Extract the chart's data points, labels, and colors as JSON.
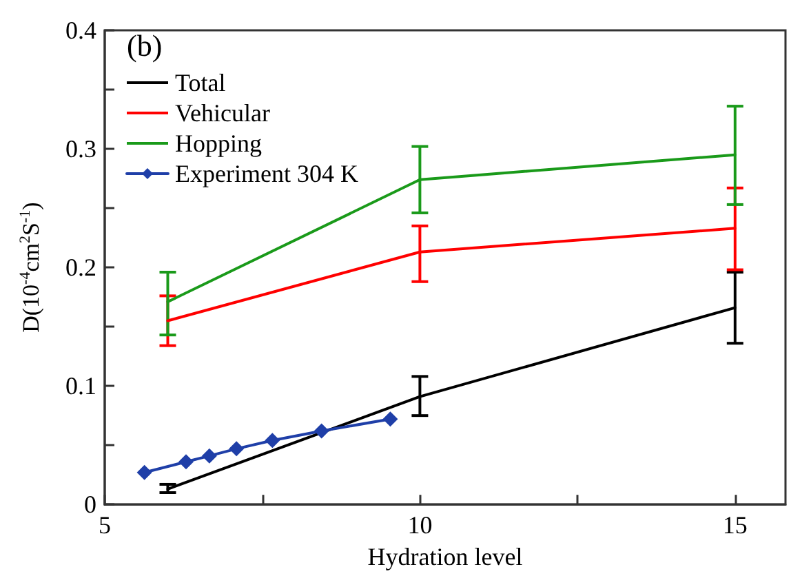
{
  "chart_data": {
    "type": "line",
    "xlabel": "Hydration level",
    "ylabel": "D(10$^{-4}$cm$^{2}$S$^{-1}$)",
    "annotations": [
      "(b)"
    ],
    "xlim": [
      5,
      15.8
    ],
    "xticks": [
      5,
      {
        "value": 7.5,
        "label": null
      },
      10,
      {
        "value": 12.5,
        "label": null
      },
      15
    ],
    "ylim": [
      0,
      0.4
    ],
    "yticks": [
      0,
      {
        "value": 0.05,
        "label": null
      },
      0.1,
      {
        "value": 0.15,
        "label": null
      },
      0.2,
      {
        "value": 0.25,
        "label": null
      },
      0.3,
      {
        "value": 0.35,
        "label": null
      },
      0.4
    ],
    "grid": false,
    "legend": "top left",
    "line_style": "solid",
    "series": [
      {
        "name": "Total",
        "color": "#000000",
        "marker": "none",
        "x": [
          6,
          10,
          15
        ],
        "values": [
          0.013,
          0.091,
          0.166
        ],
        "errors": [
          [
            0.01,
            0.017
          ],
          [
            0.075,
            0.108
          ],
          [
            0.136,
            0.196
          ]
        ]
      },
      {
        "name": "Vehicular",
        "color": "#ff0000",
        "marker": "none",
        "x": [
          6,
          10,
          15
        ],
        "values": [
          0.155,
          0.213,
          0.233
        ],
        "errors": [
          [
            0.134,
            0.176
          ],
          [
            0.188,
            0.235
          ],
          [
            0.198,
            0.267
          ]
        ]
      },
      {
        "name": "Hopping",
        "color": "#1a9a1a",
        "marker": "none",
        "x": [
          6,
          10,
          15
        ],
        "values": [
          0.171,
          0.274,
          0.295
        ],
        "errors": [
          [
            0.143,
            0.196
          ],
          [
            0.246,
            0.302
          ],
          [
            0.253,
            0.336
          ]
        ]
      },
      {
        "name": "Experiment 304 K",
        "color": "#1f3fa8",
        "marker": "diamond",
        "x": [
          5.63,
          6.29,
          6.66,
          7.09,
          7.66,
          8.44,
          9.53
        ],
        "values": [
          0.027,
          0.036,
          0.041,
          0.047,
          0.054,
          0.062,
          0.072
        ]
      }
    ]
  }
}
